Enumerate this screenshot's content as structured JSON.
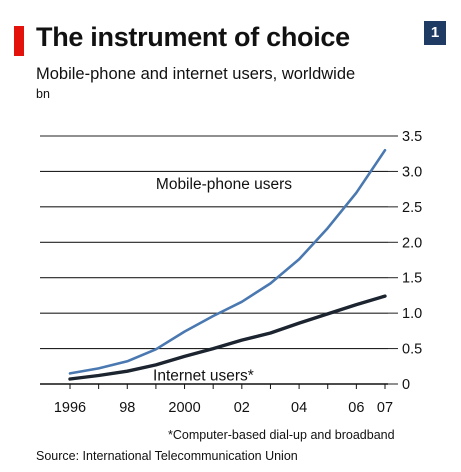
{
  "header": {
    "title": "The instrument of choice",
    "chart_number": "1",
    "subtitle": "Mobile-phone and internet users, worldwide",
    "unit": "bn"
  },
  "footer": {
    "footnote": "*Computer-based dial-up and broadband",
    "source": "Source: International Telecommunication Union"
  },
  "colors": {
    "accent_red": "#e3120b",
    "badge_navy": "#1f3a63",
    "mobile_line": "#4a78b0",
    "internet_line": "#1c2430",
    "gridline": "#222222"
  },
  "chart_data": {
    "type": "line",
    "x": [
      1996,
      1997,
      1998,
      1999,
      2000,
      2001,
      2002,
      2003,
      2004,
      2005,
      2006,
      2007
    ],
    "x_tick_values": [
      1996,
      1998,
      2000,
      2002,
      2004,
      2006,
      2007
    ],
    "x_tick_labels": [
      "1996",
      "98",
      "2000",
      "02",
      "04",
      "06",
      "07"
    ],
    "xlim": [
      1996,
      2007
    ],
    "y_ticks": [
      0,
      0.5,
      1.0,
      1.5,
      2.0,
      2.5,
      3.0,
      3.5
    ],
    "y_tick_labels": [
      "0",
      "0.5",
      "1.0",
      "1.5",
      "2.0",
      "2.5",
      "3.0",
      "3.5"
    ],
    "ylim": [
      0,
      3.5
    ],
    "y_axis_side": "right",
    "grid": true,
    "series": [
      {
        "name": "Mobile-phone users",
        "color": "#4a78b0",
        "values": [
          0.15,
          0.22,
          0.32,
          0.49,
          0.74,
          0.96,
          1.16,
          1.42,
          1.76,
          2.2,
          2.7,
          3.3
        ]
      },
      {
        "name": "Internet users*",
        "color": "#1c2430",
        "values": [
          0.07,
          0.12,
          0.18,
          0.27,
          0.39,
          0.5,
          0.62,
          0.72,
          0.86,
          0.99,
          1.12,
          1.24
        ]
      }
    ]
  }
}
